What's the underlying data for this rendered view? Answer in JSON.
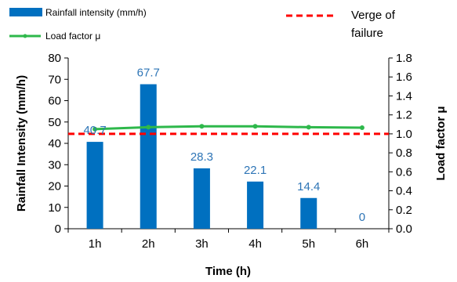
{
  "chart_data": {
    "type": "bar",
    "categories": [
      "1h",
      "2h",
      "3h",
      "4h",
      "5h",
      "6h"
    ],
    "series": [
      {
        "name": "Rainfall intensity  (mm/h)",
        "type": "bar",
        "axis": "left",
        "values": [
          40.7,
          67.7,
          28.3,
          22.1,
          14.4,
          0
        ],
        "data_labels": [
          "40.7",
          "67.7",
          "28.3",
          "22.1",
          "14.4",
          "0"
        ],
        "color": "#0070c0",
        "label_color": "#2e75b6"
      },
      {
        "name": "Load factor μ",
        "type": "line",
        "axis": "right",
        "values": [
          1.05,
          1.07,
          1.08,
          1.08,
          1.07,
          1.065
        ],
        "color": "#2eb84b"
      },
      {
        "name": "Verge of failure",
        "type": "reference_line",
        "axis": "right",
        "value": 1.0,
        "color": "#ff0000",
        "style": "dashed"
      }
    ],
    "xlabel": "Time (h)",
    "ylabel": "Rainfall Intensity (mm/h)",
    "y2label": "Load factor μ",
    "ylim": [
      0,
      80
    ],
    "y2lim": [
      0,
      1.8
    ],
    "yticks": [
      "0",
      "10",
      "20",
      "30",
      "40",
      "50",
      "60",
      "70",
      "80"
    ],
    "y2ticks": [
      "0.0",
      "0.2",
      "0.4",
      "0.6",
      "0.8",
      "1.0",
      "1.2",
      "1.4",
      "1.6",
      "1.8"
    ],
    "grid": false,
    "legend_position": "top",
    "legend_labels": {
      "rainfall": "Rainfall intensity  (mm/h)",
      "load": "Load factor μ",
      "verge_line1": "Verge of",
      "verge_line2": "failure"
    }
  }
}
